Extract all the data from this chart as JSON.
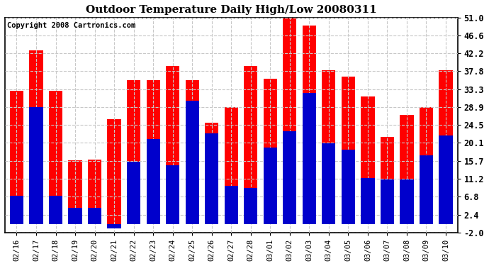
{
  "title": "Outdoor Temperature Daily High/Low 20080311",
  "copyright": "Copyright 2008 Cartronics.com",
  "dates": [
    "02/16",
    "02/17",
    "02/18",
    "02/19",
    "02/20",
    "02/21",
    "02/22",
    "02/23",
    "02/24",
    "02/25",
    "02/26",
    "02/27",
    "02/28",
    "03/01",
    "03/02",
    "03/03",
    "03/04",
    "03/05",
    "03/06",
    "03/07",
    "03/08",
    "03/09",
    "03/10"
  ],
  "highs": [
    33.0,
    43.0,
    33.0,
    15.8,
    16.0,
    26.0,
    35.5,
    35.5,
    39.0,
    35.5,
    25.0,
    29.0,
    39.0,
    36.0,
    52.0,
    49.0,
    38.0,
    36.5,
    31.5,
    21.5,
    27.0,
    29.0,
    38.0
  ],
  "lows": [
    7.0,
    29.0,
    7.0,
    4.0,
    4.0,
    -1.0,
    15.5,
    21.0,
    14.5,
    30.5,
    22.5,
    9.5,
    9.0,
    19.0,
    23.0,
    32.5,
    20.0,
    18.5,
    11.5,
    11.0,
    11.0,
    17.0,
    22.0
  ],
  "high_color": "#ff0000",
  "low_color": "#0000cc",
  "ylim": [
    -2.0,
    51.0
  ],
  "yticks": [
    -2.0,
    2.4,
    6.8,
    11.2,
    15.7,
    20.1,
    24.5,
    28.9,
    33.3,
    37.8,
    42.2,
    46.6,
    51.0
  ],
  "bg_color": "#ffffff",
  "grid_color": "#c8c8c8",
  "title_fontsize": 11,
  "copyright_fontsize": 7.5,
  "bar_width": 0.7
}
